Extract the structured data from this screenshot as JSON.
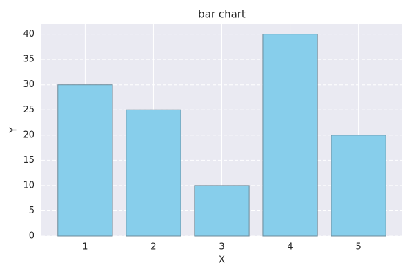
{
  "chart_data": {
    "type": "bar",
    "title": "bar chart",
    "x_label": "X",
    "y_label": "Y",
    "x": [
      1,
      2,
      3,
      4,
      5
    ],
    "values": [
      30,
      25,
      10,
      40,
      20
    ],
    "color": "#87ceeb",
    "edge_color": "#6b8a99",
    "xlim": [
      0.36,
      5.64
    ],
    "xticks": [
      1,
      2,
      3,
      4,
      5
    ],
    "ylim": [
      0,
      42
    ],
    "yticks": [
      0,
      5,
      10,
      15,
      20,
      25,
      30,
      35,
      40
    ],
    "grid": true
  }
}
